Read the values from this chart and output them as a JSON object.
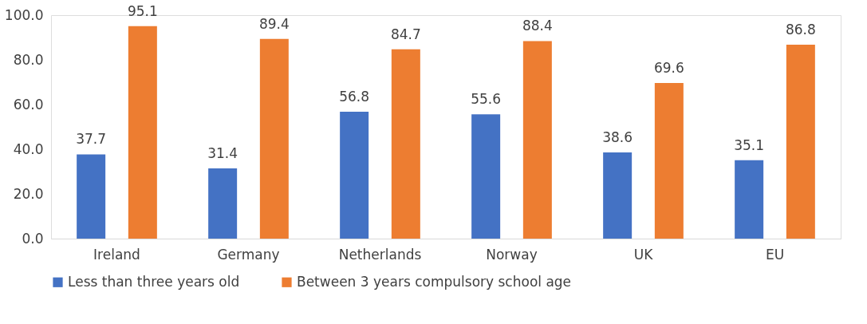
{
  "chart_data": {
    "type": "bar",
    "categories": [
      "Ireland",
      "Germany",
      "Netherlands",
      "Norway",
      "UK",
      "EU"
    ],
    "series": [
      {
        "name": "Less than three years old",
        "color": "#4472c4",
        "values": [
          37.7,
          31.4,
          56.8,
          55.6,
          38.6,
          35.1
        ]
      },
      {
        "name": "Between 3 years compulsory school age",
        "color": "#ed7d31",
        "values": [
          95.1,
          89.4,
          84.7,
          88.4,
          69.6,
          86.8
        ]
      }
    ],
    "ylim": [
      0,
      100
    ],
    "yticks": [
      {
        "value": 0,
        "label": "0.0"
      },
      {
        "value": 20,
        "label": "20.0"
      },
      {
        "value": 40,
        "label": "40.0"
      },
      {
        "value": 60,
        "label": "60.0"
      },
      {
        "value": 80,
        "label": "80.0"
      },
      {
        "value": 100,
        "label": "100.0"
      }
    ],
    "data_labels": true,
    "legend": "bottom",
    "grid": false
  }
}
